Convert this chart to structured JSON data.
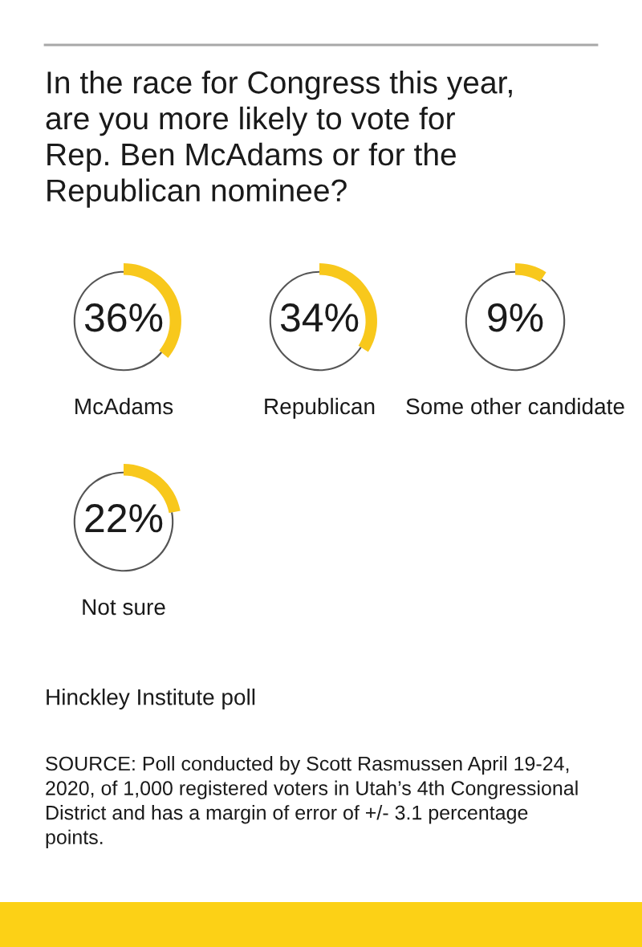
{
  "chart_data": [
    {
      "type": "donut",
      "title": "In the race for Congress this year, are you more likely to vote for Rep. Ben McAdams or for the Republican nominee?",
      "xlabel": "McAdams",
      "categories": [
        null,
        null
      ],
      "values": [
        36,
        64
      ],
      "colors": [
        "#f8c81c",
        "#555555"
      ],
      "value_labels": [
        "36%",
        null
      ]
    },
    {
      "type": "donut",
      "xlabel": "Republican",
      "categories": [
        null,
        null
      ],
      "values": [
        34,
        66
      ],
      "colors": [
        "#f8c81c",
        "#555555"
      ],
      "value_labels": [
        "34%",
        null
      ]
    },
    {
      "type": "donut",
      "xlabel": "Some other candidate",
      "categories": [
        null,
        null
      ],
      "values": [
        9,
        91
      ],
      "colors": [
        "#f8c81c",
        "#555555"
      ],
      "value_labels": [
        "9%",
        null
      ]
    },
    {
      "type": "donut",
      "xlabel": "Not sure",
      "categories": [
        null,
        null
      ],
      "values": [
        22,
        78
      ],
      "colors": [
        "#f8c81c",
        "#555555"
      ],
      "value_labels": [
        "22%",
        null
      ],
      "annotations": [
        "Hinckley Institute poll",
        "SOURCE: Poll conducted by Scott Rasmussen April 19-24, 2020, of 1,000 registered voters in Utah’s 4th Congressional District and has a margin of error of +/- 3.1 percentage points."
      ]
    }
  ]
}
